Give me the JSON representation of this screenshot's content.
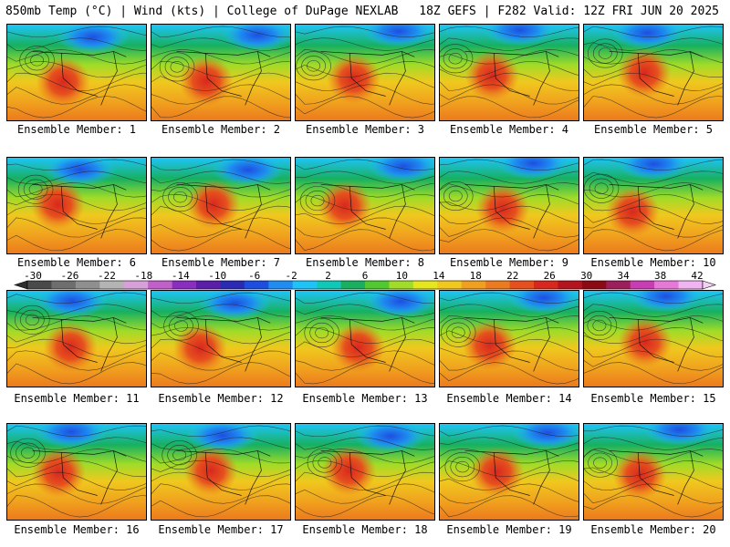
{
  "header": {
    "left": "850mb Temp (°C) | Wind (kts) | College of DuPage NEXLAB",
    "right": "18Z GEFS | F282 Valid: 12Z FRI JUN 20 2025"
  },
  "members": [
    {
      "label": "Ensemble Member: 1"
    },
    {
      "label": "Ensemble Member: 2"
    },
    {
      "label": "Ensemble Member: 3"
    },
    {
      "label": "Ensemble Member: 4"
    },
    {
      "label": "Ensemble Member: 5"
    },
    {
      "label": "Ensemble Member: 6"
    },
    {
      "label": "Ensemble Member: 7"
    },
    {
      "label": "Ensemble Member: 8"
    },
    {
      "label": "Ensemble Member: 9"
    },
    {
      "label": "Ensemble Member: 10"
    },
    {
      "label": "Ensemble Member: 11"
    },
    {
      "label": "Ensemble Member: 12"
    },
    {
      "label": "Ensemble Member: 13"
    },
    {
      "label": "Ensemble Member: 14"
    },
    {
      "label": "Ensemble Member: 15"
    },
    {
      "label": "Ensemble Member: 16"
    },
    {
      "label": "Ensemble Member: 17"
    },
    {
      "label": "Ensemble Member: 18"
    },
    {
      "label": "Ensemble Member: 19"
    },
    {
      "label": "Ensemble Member: 20"
    }
  ],
  "colorbar": {
    "ticks": [
      "-30",
      "-26",
      "-22",
      "-18",
      "-14",
      "-10",
      "-6",
      "-2",
      "2",
      "6",
      "10",
      "14",
      "18",
      "22",
      "26",
      "30",
      "34",
      "38",
      "42"
    ],
    "colors": [
      "#4a4a4a",
      "#6e6e6e",
      "#8f8f8f",
      "#b4b4b4",
      "#d8a0d8",
      "#c060c8",
      "#8a2ec0",
      "#5a1ea8",
      "#2a2ab4",
      "#1e4ee0",
      "#1e8cf0",
      "#1ec4f8",
      "#10c8b8",
      "#18b060",
      "#50c830",
      "#a0dc28",
      "#e6e61e",
      "#f0c81e",
      "#f0a01e",
      "#ec7a1e",
      "#e6501e",
      "#d8281e",
      "#b4141e",
      "#8c0a14",
      "#9c1e5a",
      "#c83cb4",
      "#e678d8",
      "#f0b4f0"
    ]
  }
}
